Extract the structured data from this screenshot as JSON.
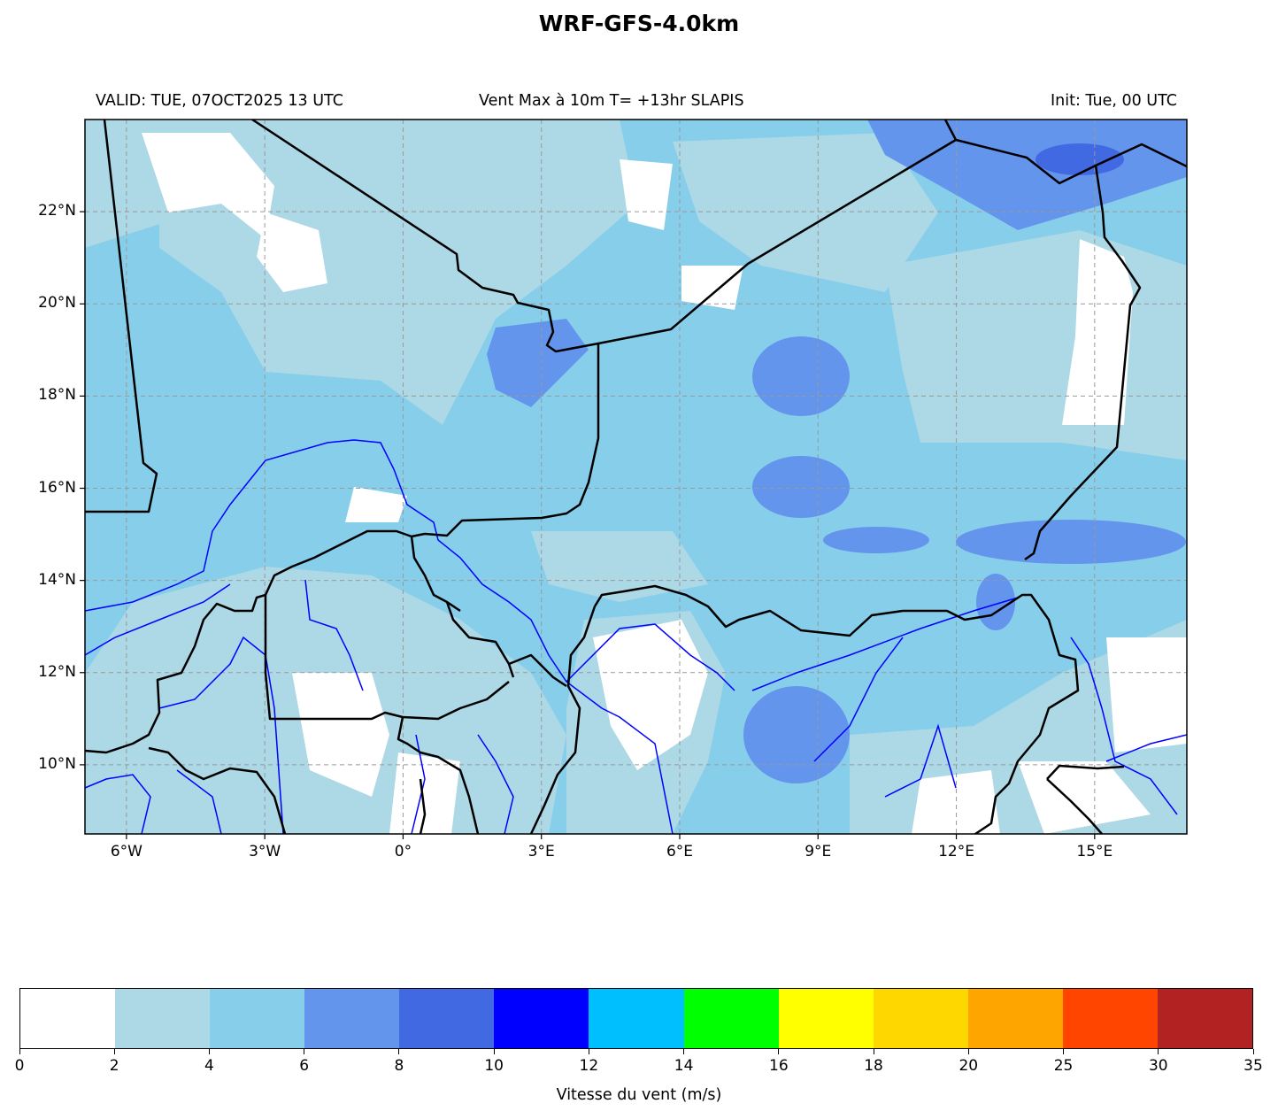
{
  "title": "WRF-GFS-4.0km",
  "subtitle_left": "VALID: TUE, 07OCT2025 13 UTC",
  "subtitle_center": "Vent Max à 10m T= +13hr SLAPIS",
  "subtitle_right": "Init: Tue, 00 UTC",
  "map": {
    "lon_range": [
      -6.9,
      17
    ],
    "lat_range": [
      8.5,
      24
    ],
    "lon_ticks": [
      {
        "v": -6,
        "label": "6°W"
      },
      {
        "v": -3,
        "label": "3°W"
      },
      {
        "v": 0,
        "label": "0°"
      },
      {
        "v": 3,
        "label": "3°E"
      },
      {
        "v": 6,
        "label": "6°E"
      },
      {
        "v": 9,
        "label": "9°E"
      },
      {
        "v": 12,
        "label": "12°E"
      },
      {
        "v": 15,
        "label": "15°E"
      }
    ],
    "lat_ticks": [
      {
        "v": 22,
        "label": "22°N"
      },
      {
        "v": 20,
        "label": "20°N"
      },
      {
        "v": 18,
        "label": "18°N"
      },
      {
        "v": 16,
        "label": "16°N"
      },
      {
        "v": 14,
        "label": "14°N"
      },
      {
        "v": 12,
        "label": "12°N"
      },
      {
        "v": 10,
        "label": "10°N"
      }
    ],
    "gridlines": true,
    "border_color": "#000000",
    "river_color": "#0000ff"
  },
  "colorbar": {
    "label": "Vitesse du vent (m/s)",
    "ticks": [
      "0",
      "2",
      "4",
      "6",
      "8",
      "10",
      "12",
      "14",
      "16",
      "18",
      "20",
      "25",
      "30",
      "35"
    ],
    "colors": [
      "#ffffff",
      "#add8e6",
      "#87ceeb",
      "#6495ed",
      "#4169e1",
      "#0000ff",
      "#00bfff",
      "#00ff00",
      "#ffff00",
      "#ffd700",
      "#ffa500",
      "#ff4500",
      "#b22222"
    ]
  }
}
